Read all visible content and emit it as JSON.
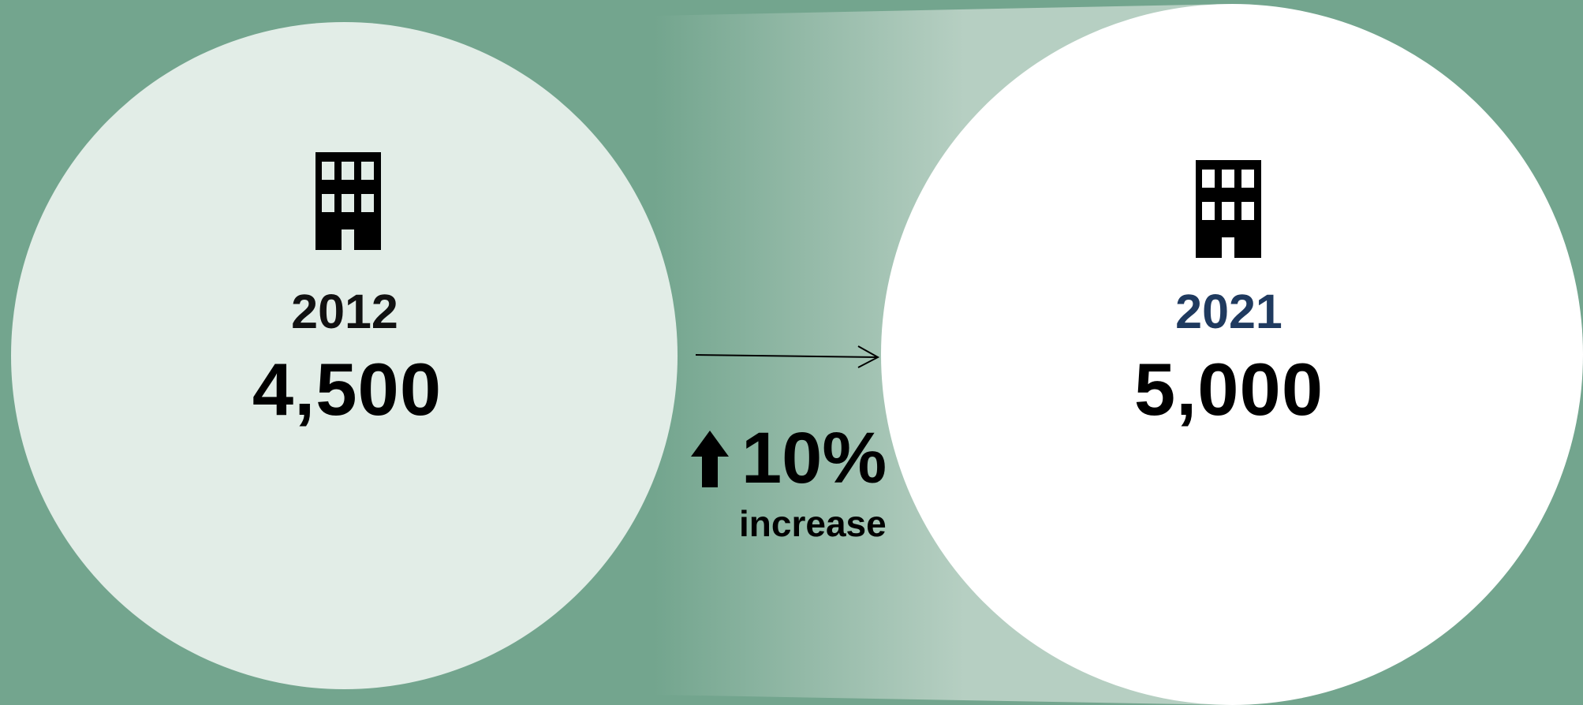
{
  "colors": {
    "background": "#73a58e",
    "left_circle": "#e2ede7",
    "right_circle": "#ffffff",
    "year_2012": "#111111",
    "year_2021": "#1f3a5f",
    "text": "#000000"
  },
  "left": {
    "year": "2012",
    "value": "4,500",
    "icon": "building-icon"
  },
  "right": {
    "year": "2021",
    "value": "5,000",
    "icon": "building-icon"
  },
  "change": {
    "percent": "10%",
    "label": "increase",
    "icon": "up-arrow-icon"
  }
}
